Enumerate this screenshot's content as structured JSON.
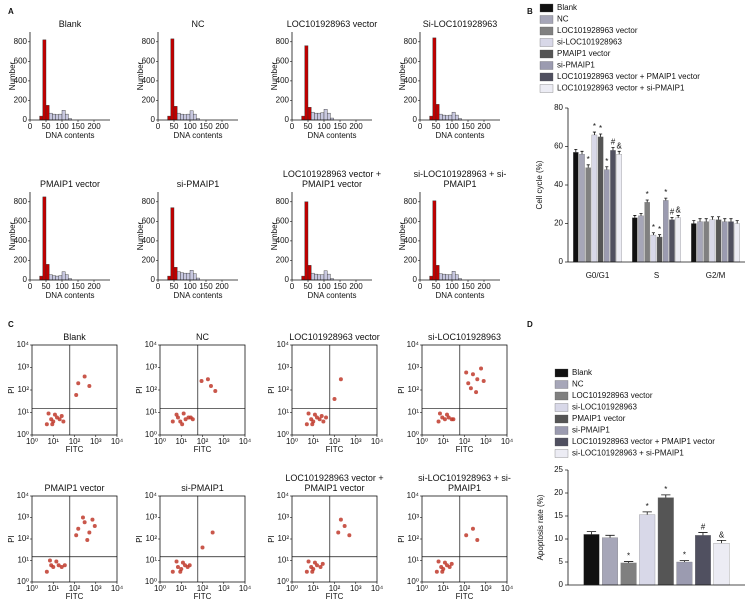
{
  "chart_data": [
    {
      "type": "histogram",
      "label": "A",
      "xlabel": "DNA contents",
      "ylabel": "Number",
      "xlim": [
        0,
        250
      ],
      "ylim": [
        0,
        900
      ],
      "xticks": [
        0,
        50,
        100,
        150,
        200
      ],
      "yticks": [
        0,
        200,
        400,
        600,
        800
      ],
      "bins": [
        30,
        40,
        50,
        60,
        70,
        80,
        90,
        100,
        110,
        120,
        130
      ],
      "colors": [
        "#c00000",
        "#c00000",
        "#c00000",
        "#c8c8e0",
        "#c8c8e0",
        "#c8c8e0",
        "#c8c8e0",
        "#c8c8e0",
        "#c8c8e0",
        "#c8c8e0"
      ],
      "panels": [
        {
          "title": "Blank",
          "values": [
            40,
            820,
            150,
            70,
            60,
            55,
            60,
            100,
            60,
            15
          ]
        },
        {
          "title": "NC",
          "values": [
            40,
            830,
            140,
            70,
            60,
            55,
            60,
            95,
            60,
            15
          ]
        },
        {
          "title": "LOC101928963 vector",
          "values": [
            40,
            760,
            130,
            80,
            70,
            70,
            75,
            110,
            70,
            20
          ]
        },
        {
          "title": "Si-LOC101928963",
          "values": [
            40,
            840,
            160,
            60,
            50,
            45,
            50,
            80,
            50,
            15
          ]
        },
        {
          "title": "PMAIP1 vector",
          "values": [
            40,
            850,
            160,
            55,
            45,
            40,
            45,
            85,
            55,
            15
          ]
        },
        {
          "title": "si-PMAIP1",
          "values": [
            40,
            740,
            130,
            85,
            75,
            70,
            70,
            100,
            65,
            20
          ]
        },
        {
          "title": "LOC101928963 vector + PMAIP1 vector",
          "values": [
            40,
            800,
            150,
            70,
            60,
            55,
            55,
            95,
            60,
            15
          ]
        },
        {
          "title": "si-LOC101928963 + si- PMAIP1",
          "values": [
            40,
            810,
            150,
            65,
            60,
            55,
            55,
            90,
            55,
            15
          ]
        }
      ]
    },
    {
      "type": "grouped-bar",
      "label": "B",
      "ylabel": "Cell cycle (%)",
      "categories": [
        "G0/G1",
        "S",
        "G2/M"
      ],
      "ylim": [
        0,
        80
      ],
      "yticks": [
        0,
        20,
        40,
        60,
        80
      ],
      "series": [
        {
          "name": "Blank",
          "color": "#111111",
          "values": [
            57,
            23,
            20
          ],
          "errors": [
            1.5,
            1.2,
            1.5
          ],
          "annotations": [
            null,
            null,
            null
          ]
        },
        {
          "name": "NC",
          "color": "#a6a6b8",
          "values": [
            56,
            24,
            21
          ],
          "errors": [
            1.5,
            1.2,
            1.5
          ],
          "annotations": [
            null,
            null,
            null
          ]
        },
        {
          "name": "LOC101928963 vector",
          "color": "#808080",
          "values": [
            49,
            31,
            21
          ],
          "errors": [
            1.5,
            1.2,
            1.5
          ],
          "annotations": [
            "*",
            "*",
            null
          ]
        },
        {
          "name": "si-LOC101928963",
          "color": "#d8d8e8",
          "values": [
            66,
            14,
            22
          ],
          "errors": [
            1.5,
            1.2,
            1.5
          ],
          "annotations": [
            "*",
            "*",
            null
          ]
        },
        {
          "name": "PMAIP1 vector",
          "color": "#555555",
          "values": [
            65,
            13,
            22
          ],
          "errors": [
            1.5,
            1.2,
            1.5
          ],
          "annotations": [
            "*",
            "*",
            null
          ]
        },
        {
          "name": "si-PMAIP1",
          "color": "#9b9bb0",
          "values": [
            48,
            32,
            21
          ],
          "errors": [
            1.5,
            1.2,
            1.5
          ],
          "annotations": [
            "*",
            "*",
            null
          ]
        },
        {
          "name": "LOC101928963 vector + PMAIP1 vector",
          "color": "#505060",
          "values": [
            58,
            22,
            21
          ],
          "errors": [
            1.5,
            1.2,
            1.5
          ],
          "annotations": [
            "#",
            "#",
            null
          ]
        },
        {
          "name": "LOC101928963 vector + si-PMAIP1",
          "color": "#ececf4",
          "values": [
            56,
            23,
            20
          ],
          "errors": [
            1.5,
            1.2,
            1.5
          ],
          "annotations": [
            "&",
            "&",
            null
          ]
        }
      ]
    },
    {
      "type": "scatter",
      "label": "C",
      "xlabel": "FITC",
      "ylabel": "PI",
      "log": true,
      "color": "#c0392b",
      "xlim": [
        1,
        10000
      ],
      "ylim": [
        1,
        10000
      ],
      "xticks": [
        {
          "value": 1,
          "label": "10⁰"
        },
        {
          "value": 10,
          "label": "10¹"
        },
        {
          "value": 100,
          "label": "10²"
        },
        {
          "value": 1000,
          "label": "10³"
        },
        {
          "value": 10000,
          "label": "10⁴"
        }
      ],
      "yticks": [
        {
          "value": 1,
          "label": "10⁰"
        },
        {
          "value": 10,
          "label": "10¹"
        },
        {
          "value": 100,
          "label": "10²"
        },
        {
          "value": 1000,
          "label": "10³"
        },
        {
          "value": 10000,
          "label": "10⁴"
        }
      ],
      "gate_x": 60,
      "gate_y": 15,
      "panels": [
        {
          "title": "Blank",
          "x": [
            5,
            8,
            10,
            12,
            15,
            20,
            6,
            9,
            25,
            30,
            150,
            300,
            120,
            500
          ],
          "y": [
            3,
            5,
            4,
            8,
            6,
            5,
            9,
            3,
            7,
            4,
            200,
            400,
            60,
            150
          ]
        },
        {
          "title": "NC",
          "x": [
            4,
            7,
            11,
            13,
            16,
            22,
            6,
            9,
            28,
            35,
            180,
            250,
            90,
            400
          ],
          "y": [
            4,
            6,
            3,
            9,
            5,
            6,
            8,
            4,
            6,
            5,
            300,
            150,
            250,
            90
          ]
        },
        {
          "title": "LOC101928963 vector",
          "x": [
            5,
            8,
            10,
            12,
            15,
            20,
            6,
            9,
            25,
            30,
            40,
            200,
            100
          ],
          "y": [
            3,
            5,
            4,
            8,
            6,
            5,
            9,
            3,
            7,
            4,
            6,
            300,
            40
          ]
        },
        {
          "title": "si-LOC101928963",
          "x": [
            6,
            9,
            12,
            15,
            18,
            25,
            7,
            30,
            150,
            250,
            400,
            600,
            200,
            800,
            120,
            350
          ],
          "y": [
            4,
            6,
            5,
            8,
            6,
            5,
            9,
            5,
            200,
            500,
            300,
            900,
            120,
            250,
            600,
            80
          ]
        },
        {
          "title": "PMAIP1 vector",
          "x": [
            5,
            8,
            10,
            14,
            18,
            25,
            7,
            35,
            150,
            300,
            500,
            700,
            250,
            120,
            900,
            400
          ],
          "y": [
            3,
            6,
            5,
            9,
            6,
            5,
            10,
            6,
            300,
            600,
            200,
            800,
            1000,
            150,
            400,
            90
          ]
        },
        {
          "title": "si-PMAIP1",
          "x": [
            4,
            7,
            10,
            12,
            15,
            20,
            6,
            9,
            25,
            300,
            100
          ],
          "y": [
            3,
            5,
            4,
            8,
            6,
            5,
            9,
            3,
            6,
            200,
            40
          ]
        },
        {
          "title": "LOC101928963 vector + PMAIP1 vector",
          "x": [
            5,
            8,
            10,
            12,
            15,
            22,
            6,
            9,
            28,
            150,
            300,
            500,
            200
          ],
          "y": [
            3,
            5,
            4,
            8,
            6,
            5,
            9,
            3,
            7,
            200,
            400,
            150,
            800
          ]
        },
        {
          "title": "si-LOC101928963 + si-PMAIP1",
          "x": [
            5,
            8,
            10,
            12,
            15,
            20,
            6,
            9,
            25,
            120,
            250,
            400
          ],
          "y": [
            3,
            5,
            4,
            8,
            6,
            5,
            9,
            3,
            7,
            150,
            300,
            90
          ]
        }
      ]
    },
    {
      "type": "grouped-bar",
      "label": "D",
      "ylabel": "Apoptosis rate (%)",
      "categories": [
        null
      ],
      "ylim": [
        0,
        25
      ],
      "yticks": [
        0,
        5,
        10,
        15,
        20,
        25
      ],
      "series": [
        {
          "name": "Blank",
          "color": "#111111",
          "values": [
            11
          ],
          "errors": [
            0.6
          ],
          "annotations": [
            null
          ]
        },
        {
          "name": "NC",
          "color": "#a6a6b8",
          "values": [
            10.3
          ],
          "errors": [
            0.5
          ],
          "annotations": [
            null
          ]
        },
        {
          "name": "LOC101928963 vector",
          "color": "#808080",
          "values": [
            4.8
          ],
          "errors": [
            0.3
          ],
          "annotations": [
            "*"
          ]
        },
        {
          "name": "si-LOC101928963",
          "color": "#d8d8e8",
          "values": [
            15.3
          ],
          "errors": [
            0.6
          ],
          "annotations": [
            "*"
          ]
        },
        {
          "name": "PMAIP1 vector",
          "color": "#555555",
          "values": [
            19
          ],
          "errors": [
            0.6
          ],
          "annotations": [
            "*"
          ]
        },
        {
          "name": "si-PMAIP1",
          "color": "#9b9bb0",
          "values": [
            5
          ],
          "errors": [
            0.3
          ],
          "annotations": [
            "*"
          ]
        },
        {
          "name": "LOC101928963 vector + PMAIP1 vector",
          "color": "#505060",
          "values": [
            10.8
          ],
          "errors": [
            0.6
          ],
          "annotations": [
            "#"
          ]
        },
        {
          "name": "si-LOC101928963 + si-PMAIP1",
          "color": "#ececf4",
          "values": [
            9.1
          ],
          "errors": [
            0.6
          ],
          "annotations": [
            "&"
          ]
        }
      ]
    }
  ]
}
